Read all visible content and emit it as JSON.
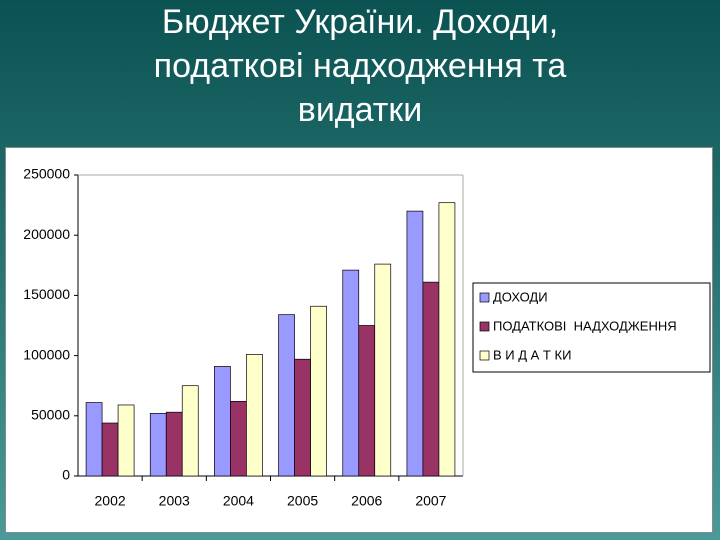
{
  "chart_data": {
    "type": "bar",
    "title": "Бюджет України. Доходи, податкові надходження та видатки",
    "categories": [
      "2002",
      "2003",
      "2004",
      "2005",
      "2006",
      "2007"
    ],
    "series": [
      {
        "name": "ДОХОДИ",
        "color": "#9999ff",
        "values": [
          61000,
          52000,
          91000,
          134000,
          171000,
          220000
        ]
      },
      {
        "name": "ПОДАТКОВІ  НАДХОДЖЕННЯ",
        "color": "#993366",
        "values": [
          44000,
          53000,
          62000,
          97000,
          125000,
          161000
        ]
      },
      {
        "name": "В И Д А Т КИ",
        "color": "#ffffcc",
        "values": [
          59000,
          75000,
          101000,
          141000,
          176000,
          227000
        ]
      }
    ],
    "ylim": [
      0,
      250000
    ],
    "yticks": [
      0,
      50000,
      100000,
      150000,
      200000,
      250000
    ],
    "legend": "right"
  }
}
